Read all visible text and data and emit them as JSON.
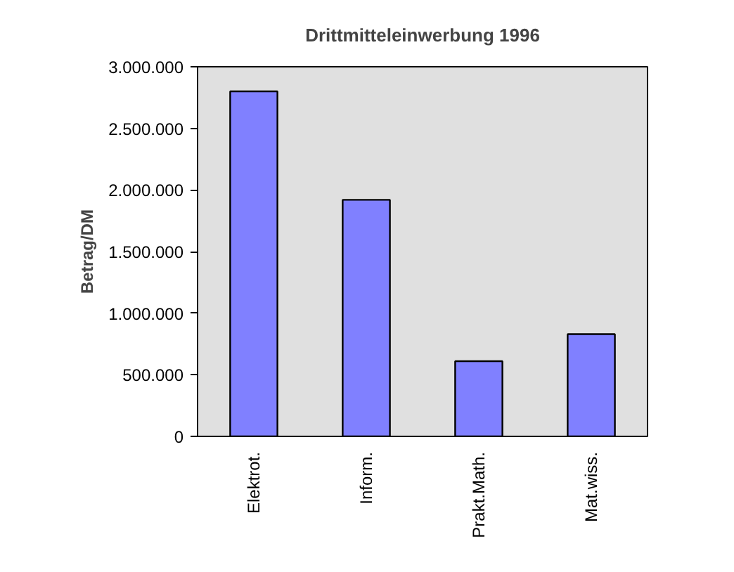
{
  "chart_data": {
    "type": "bar",
    "title": "Drittmitteleinwerbung 1996",
    "ylabel": "Betrag/DM",
    "categories": [
      "Elektrot.",
      "Inform.",
      "Prakt.Math.",
      "Mat.wiss."
    ],
    "values": [
      2800000,
      1920000,
      610000,
      830000
    ],
    "color": "#8080ff",
    "ylim": [
      0,
      3000000
    ],
    "yticks": [
      {
        "value": 0,
        "label": "0"
      },
      {
        "value": 500000,
        "label": "500.000"
      },
      {
        "value": 1000000,
        "label": "1.000.000"
      },
      {
        "value": 1500000,
        "label": "1.500.000"
      },
      {
        "value": 2000000,
        "label": "2.000.000"
      },
      {
        "value": 2500000,
        "label": "2.500.000"
      },
      {
        "value": 3000000,
        "label": "3.000.000"
      }
    ],
    "grid": false
  }
}
